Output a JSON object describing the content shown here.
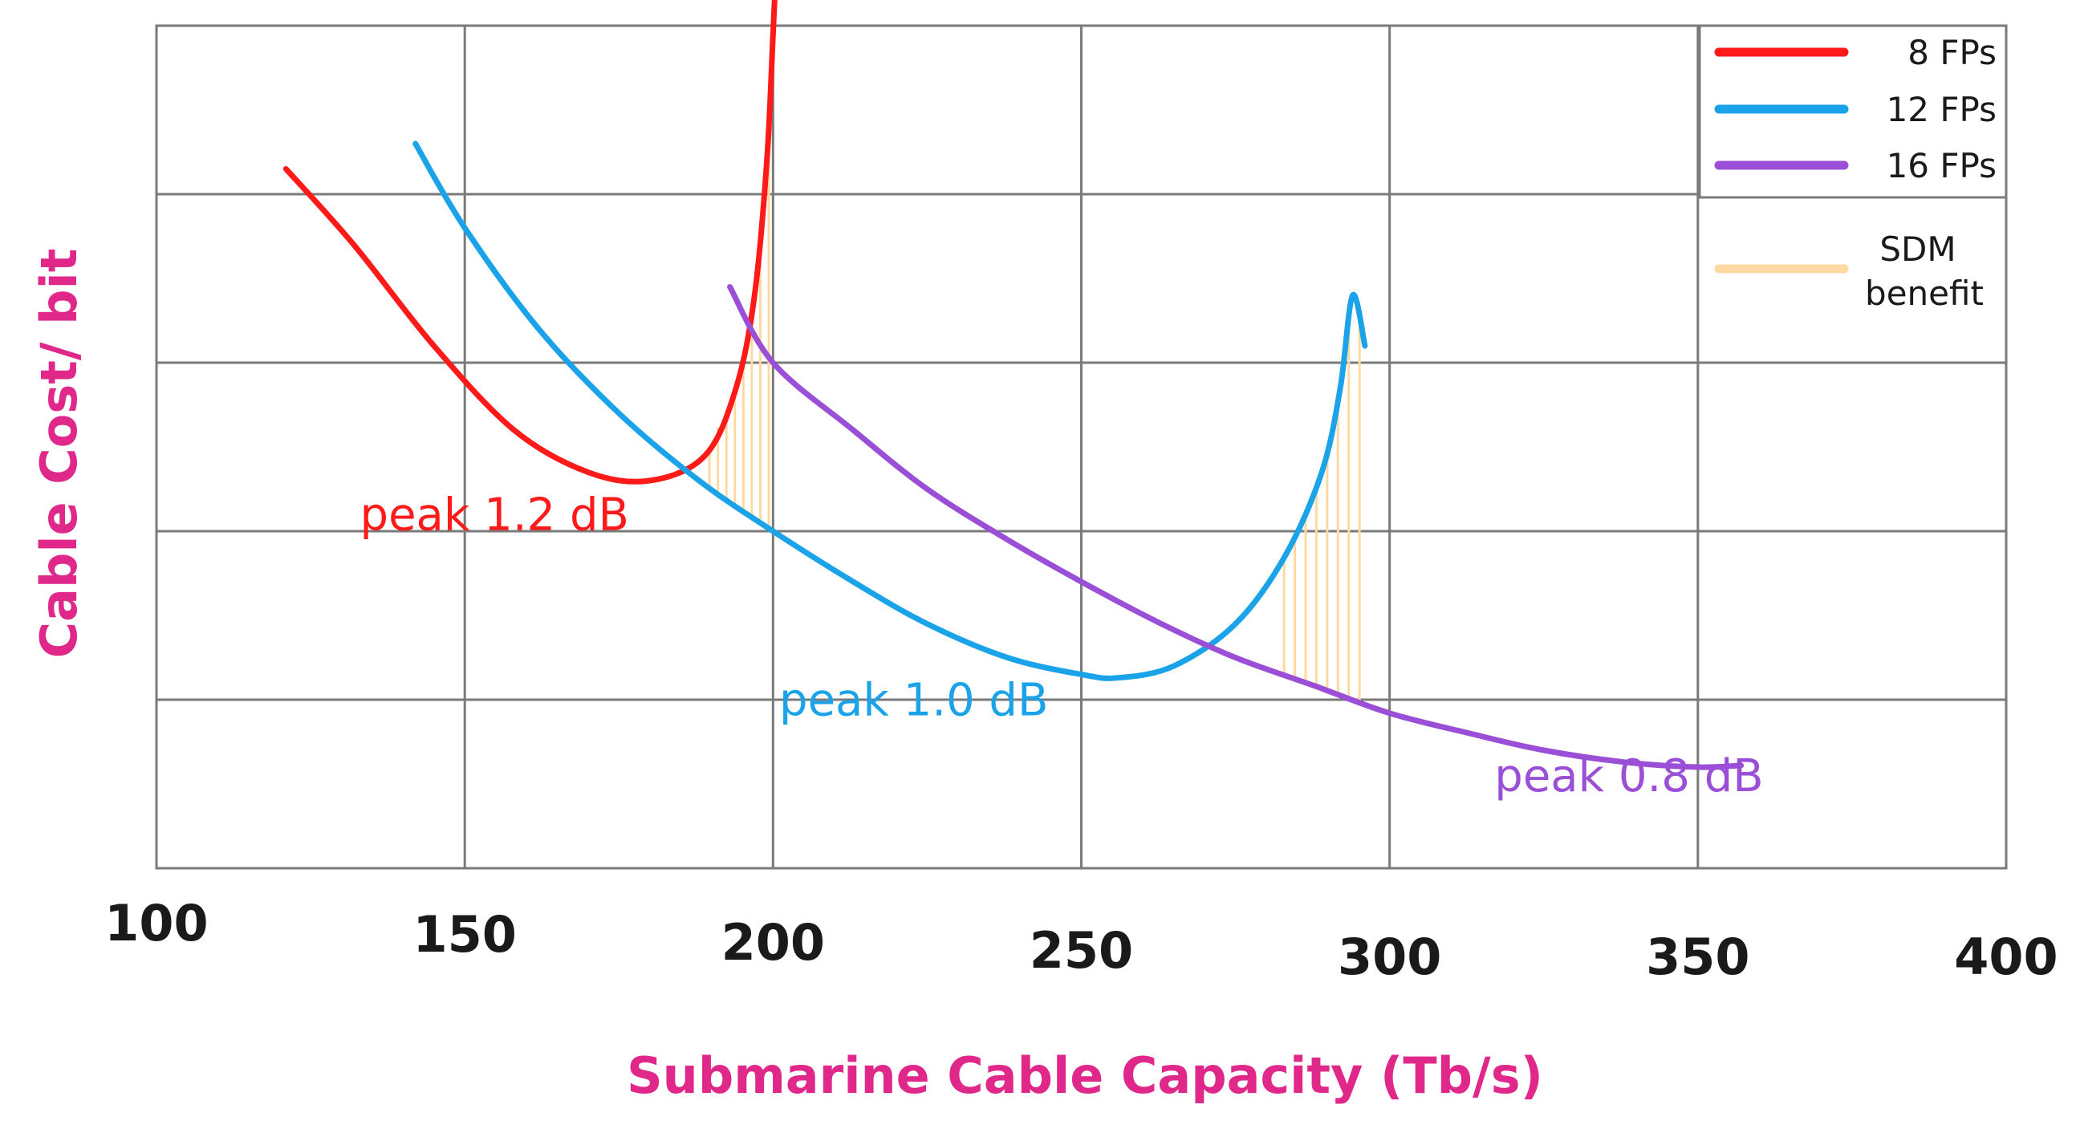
{
  "chart_data": {
    "type": "line",
    "title": "",
    "xlabel": "Submarine Cable Capacity (Tb/s)",
    "ylabel": "Cable Cost/ bit",
    "xlim": [
      100,
      400
    ],
    "ylim": [
      0,
      5
    ],
    "x_ticks": [
      100,
      150,
      200,
      250,
      300,
      350,
      400
    ],
    "x_tick_labels": [
      "100",
      "150",
      "200",
      "250",
      "300",
      "350",
      "400"
    ],
    "y_ticks": [
      0,
      1,
      2,
      3,
      4,
      5
    ],
    "y_tick_labels": [],
    "grid": true,
    "legend_position": "top-right",
    "series": [
      {
        "name": "8 FPs",
        "color": "#ff1a1a",
        "x": [
          121,
          132,
          145,
          158,
          170,
          180,
          189,
          194,
          197,
          199,
          200,
          200.5
        ],
        "y": [
          4.15,
          3.7,
          3.1,
          2.6,
          2.35,
          2.3,
          2.45,
          2.85,
          3.4,
          4.2,
          4.95,
          5.35
        ],
        "annotation": "peak 1.2 dB"
      },
      {
        "name": "12 FPs",
        "color": "#1aa3e8",
        "x": [
          142,
          150,
          162,
          175,
          188,
          200,
          213,
          225,
          238,
          250,
          256,
          265,
          275,
          283,
          289,
          292,
          294,
          296
        ],
        "y": [
          4.3,
          3.8,
          3.2,
          2.7,
          2.3,
          2.0,
          1.7,
          1.45,
          1.25,
          1.15,
          1.13,
          1.2,
          1.45,
          1.85,
          2.35,
          2.85,
          3.4,
          3.1
        ],
        "annotation": "peak 1.0 dB"
      },
      {
        "name": "16 FPs",
        "color": "#9a4fd6",
        "x": [
          193,
          200,
          213,
          225,
          238,
          250,
          263,
          275,
          288,
          300,
          313,
          325,
          338,
          350,
          357
        ],
        "y": [
          3.45,
          3.0,
          2.6,
          2.25,
          1.95,
          1.7,
          1.45,
          1.25,
          1.08,
          0.92,
          0.8,
          0.7,
          0.63,
          0.6,
          0.61
        ],
        "annotation": "peak 0.8 dB"
      }
    ],
    "sdm_benefit": {
      "name": "SDM benefit",
      "color": "#ffd9a0",
      "regions": [
        {
          "x_start": 189,
          "x_end": 200
        },
        {
          "x_start": 282,
          "x_end": 296
        }
      ]
    }
  },
  "legend": {
    "items": [
      {
        "label": "8 FPs",
        "color": "#ff1a1a"
      },
      {
        "label": "12 FPs",
        "color": "#1aa3e8"
      },
      {
        "label": "16 FPs",
        "color": "#9a4fd6"
      }
    ],
    "sdm_label_line1": "SDM",
    "sdm_label_line2": "benefit",
    "sdm_color": "#ffd9a0"
  }
}
